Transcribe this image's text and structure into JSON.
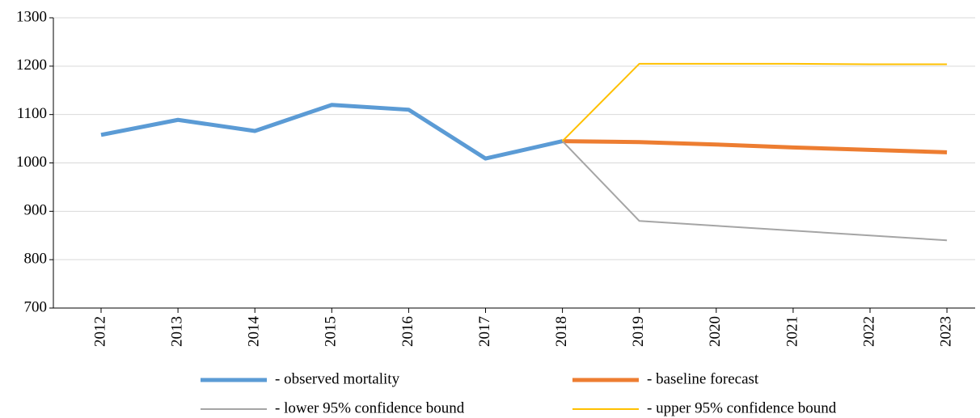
{
  "chart_data": {
    "type": "line",
    "categories": [
      "2012",
      "2013",
      "2014",
      "2015",
      "2016",
      "2017",
      "2018",
      "2019",
      "2020",
      "2021",
      "2022",
      "2023"
    ],
    "series": [
      {
        "name": "- observed mortality",
        "color": "#5b9bd5",
        "width": 5,
        "values": [
          1058,
          1089,
          1066,
          1120,
          1110,
          1009,
          1045,
          null,
          null,
          null,
          null,
          null
        ]
      },
      {
        "name": "- baseline forecast",
        "color": "#ed7d31",
        "width": 5,
        "values": [
          null,
          null,
          null,
          null,
          null,
          null,
          1045,
          1043,
          1038,
          1032,
          1027,
          1022
        ]
      },
      {
        "name": "- lower 95% confidence bound",
        "color": "#a5a5a5",
        "width": 2,
        "values": [
          null,
          null,
          null,
          null,
          null,
          null,
          1045,
          880,
          870,
          860,
          850,
          840
        ]
      },
      {
        "name": "- upper 95% confidence bound",
        "color": "#ffc000",
        "width": 2,
        "values": [
          null,
          null,
          null,
          null,
          null,
          null,
          1045,
          1205,
          1205,
          1205,
          1204,
          1204
        ]
      }
    ],
    "ylim": [
      700,
      1300
    ],
    "yticks": [
      700,
      800,
      900,
      1000,
      1100,
      1200,
      1300
    ],
    "grid": true
  }
}
